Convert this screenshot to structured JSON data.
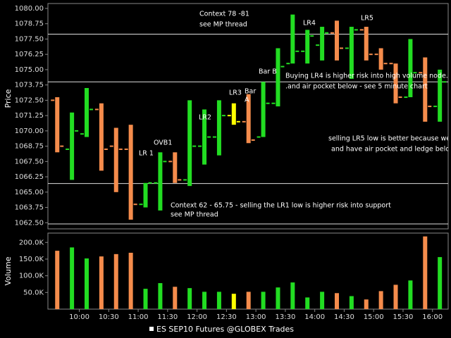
{
  "chart_data": [
    {
      "type": "ohlc",
      "ylabel": "Price",
      "legend": "ES SEP10 Futures @GLOBEX Trades",
      "x": [
        577.5,
        592.5,
        607.5,
        622.5,
        637.5,
        652.5,
        667.5,
        682.5,
        697.5,
        712.5,
        727.5,
        742.5,
        757.5,
        772.5,
        787.5,
        802.5,
        817.5,
        832.5,
        847.5,
        862.5,
        877.5,
        892.5,
        907.5,
        922.5,
        937.5,
        952.5,
        967.5
      ],
      "open": [
        1072.5,
        1068.5,
        1069.75,
        1071.75,
        1068.75,
        1068.5,
        1064.0,
        1065.75,
        1067.5,
        1066.0,
        1068.75,
        1069.5,
        1071.25,
        1070.75,
        1069.5,
        1072.25,
        1075.5,
        1076.5,
        1077.0,
        1078.0,
        1076.75,
        1078.25,
        1076.25,
        1075.5,
        1072.75,
        1074.75,
        1072.0
      ],
      "high": [
        1072.75,
        1071.5,
        1073.5,
        1072.25,
        1070.25,
        1070.5,
        1065.75,
        1068.25,
        1068.25,
        1072.5,
        1071.75,
        1072.5,
        1072.25,
        1073.0,
        1074.0,
        1076.75,
        1079.5,
        1078.25,
        1078.5,
        1079.0,
        1078.5,
        1078.5,
        1076.75,
        1075.5,
        1077.5,
        1076.0,
        1075.0
      ],
      "low": [
        1068.25,
        1066.0,
        1069.5,
        1066.75,
        1065.0,
        1062.75,
        1063.75,
        1063.5,
        1065.75,
        1065.5,
        1067.25,
        1068.0,
        1070.5,
        1069.0,
        1069.5,
        1072.0,
        1075.5,
        1075.5,
        1075.75,
        1075.75,
        1074.25,
        1075.75,
        1075.0,
        1072.25,
        1072.75,
        1070.75,
        1070.75
      ],
      "close": [
        1068.75,
        1070.0,
        1071.75,
        1068.5,
        1068.5,
        1064.0,
        1065.75,
        1067.5,
        1066.0,
        1068.75,
        1069.5,
        1071.25,
        1070.75,
        1069.25,
        1072.25,
        1075.25,
        1076.5,
        1077.75,
        1078.0,
        1076.75,
        1078.25,
        1076.25,
        1075.5,
        1072.75,
        1074.75,
        1072.0,
        1074.0
      ],
      "colors": [
        "#f58c4c",
        "#22dd22",
        "#22dd22",
        "#f58c4c",
        "#f58c4c",
        "#f58c4c",
        "#22dd22",
        "#22dd22",
        "#f58c4c",
        "#22dd22",
        "#22dd22",
        "#22dd22",
        "#ffff00",
        "#f58c4c",
        "#22dd22",
        "#22dd22",
        "#22dd22",
        "#22dd22",
        "#22dd22",
        "#f58c4c",
        "#22dd22",
        "#f58c4c",
        "#f58c4c",
        "#f58c4c",
        "#22dd22",
        "#f58c4c",
        "#22dd22"
      ],
      "hlines": [
        1077.9,
        1074.0,
        1065.7,
        1062.4
      ],
      "xlim": [
        568,
        976
      ],
      "ylim": [
        1062,
        1080.4
      ],
      "yticks": [
        {
          "value": 1062.5,
          "label": "1062.50"
        },
        {
          "value": 1063.75,
          "label": "1063.75"
        },
        {
          "value": 1065,
          "label": "1065.00"
        },
        {
          "value": 1066.25,
          "label": "1066.25"
        },
        {
          "value": 1067.5,
          "label": "1067.50"
        },
        {
          "value": 1068.75,
          "label": "1068.75"
        },
        {
          "value": 1070,
          "label": "1070.00"
        },
        {
          "value": 1071.25,
          "label": "1071.25"
        },
        {
          "value": 1072.5,
          "label": "1072.50"
        },
        {
          "value": 1073.75,
          "label": "1073.75"
        },
        {
          "value": 1075,
          "label": "1075.00"
        },
        {
          "value": 1076.25,
          "label": "1076.25"
        },
        {
          "value": 1077.5,
          "label": "1077.50"
        },
        {
          "value": 1078.75,
          "label": "1078.75"
        },
        {
          "value": 1080,
          "label": "1080.00"
        }
      ],
      "annotations": [
        "Context 78 -81",
        "see MP thread",
        "LR4",
        "LR5",
        "Bar B",
        "Buying LR4 is higher risk into high volume node...",
        ".and air pocket below - see 5 minute chart",
        "LR3",
        "Bar",
        "A",
        "LR2",
        "OVB1",
        "LR 1",
        "selling LR5 low is better because we",
        "and have air pocket and ledge belo",
        "Context 62 - 65.75 - selling the LR1 low is higher risk into support",
        "see MP thread"
      ]
    },
    {
      "type": "bar",
      "ylabel": "Volume",
      "values": [
        175,
        185,
        152,
        158,
        165,
        169,
        61,
        78,
        67,
        63,
        52,
        52,
        46,
        52,
        52,
        65,
        80,
        35,
        52,
        48,
        39,
        29,
        54,
        73,
        86,
        218,
        156
      ],
      "ylim": [
        0,
        228
      ],
      "yticks": [
        {
          "value": 50,
          "label": "50.0K"
        },
        {
          "value": 100,
          "label": "100.0K"
        },
        {
          "value": 150,
          "label": "150.0K"
        },
        {
          "value": 200,
          "label": "200.0K"
        }
      ],
      "xticks": [
        {
          "value": 600,
          "label": "10:00"
        },
        {
          "value": 630,
          "label": "10:30"
        },
        {
          "value": 660,
          "label": "11:00"
        },
        {
          "value": 690,
          "label": "11:30"
        },
        {
          "value": 720,
          "label": "12:00"
        },
        {
          "value": 750,
          "label": "12:30"
        },
        {
          "value": 780,
          "label": "13:00"
        },
        {
          "value": 810,
          "label": "13:30"
        },
        {
          "value": 840,
          "label": "14:00"
        },
        {
          "value": 870,
          "label": "14:30"
        },
        {
          "value": 900,
          "label": "15:00"
        },
        {
          "value": 930,
          "label": "15:30"
        },
        {
          "value": 960,
          "label": "16:00"
        }
      ]
    }
  ]
}
